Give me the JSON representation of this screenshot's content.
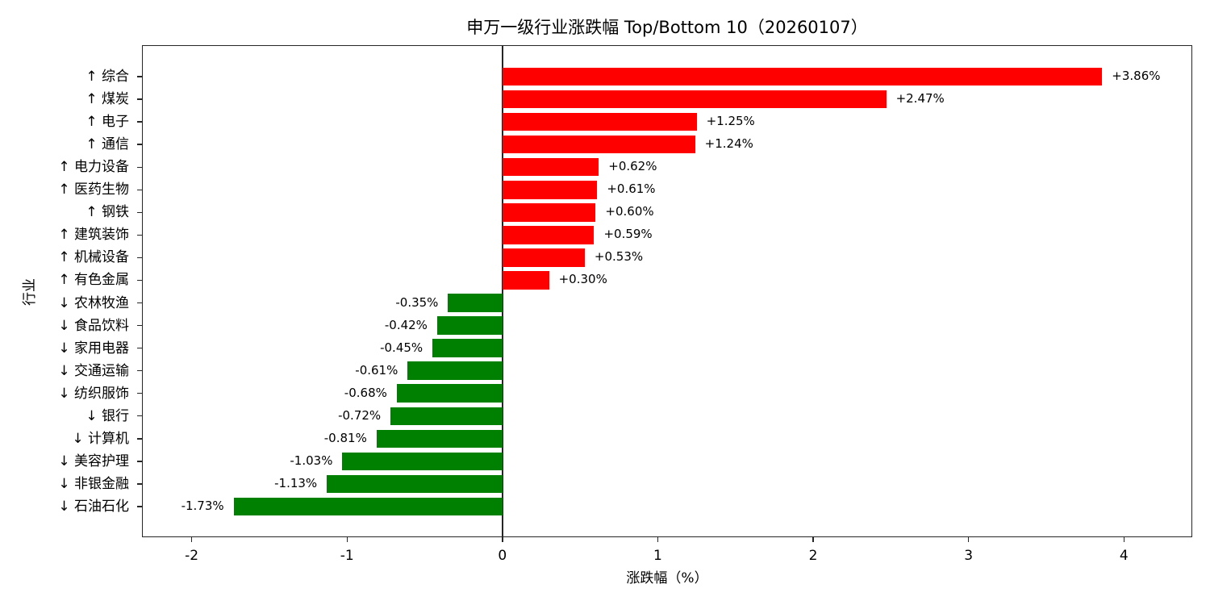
{
  "chart_data": {
    "type": "bar",
    "orientation": "horizontal",
    "title": "申万一级行业涨跌幅 Top/Bottom 10（20260107）",
    "xlabel": "涨跌幅（%）",
    "ylabel": "行业",
    "xlim": [
      -2.32,
      4.44
    ],
    "xticks": [
      -2,
      -1,
      0,
      1,
      2,
      3,
      4
    ],
    "xtick_labels": [
      "-2",
      "-1",
      "0",
      "1",
      "2",
      "3",
      "4"
    ],
    "grid": false,
    "legend": null,
    "colors": {
      "positive": "#ff0000",
      "negative": "#008000",
      "axis": "#262626"
    },
    "categories": [
      "↑ 综合",
      "↑ 煤炭",
      "↑ 电子",
      "↑ 通信",
      "↑ 电力设备",
      "↑ 医药生物",
      "↑ 钢铁",
      "↑ 建筑装饰",
      "↑ 机械设备",
      "↑ 有色金属",
      "↓ 农林牧渔",
      "↓ 食品饮料",
      "↓ 家用电器",
      "↓ 交通运输",
      "↓ 纺织服饰",
      "↓ 银行",
      "↓ 计算机",
      "↓ 美容护理",
      "↓ 非银金融",
      "↓ 石油石化"
    ],
    "values": [
      3.86,
      2.47,
      1.25,
      1.24,
      0.62,
      0.61,
      0.6,
      0.59,
      0.53,
      0.3,
      -0.35,
      -0.42,
      -0.45,
      -0.61,
      -0.68,
      -0.72,
      -0.81,
      -1.03,
      -1.13,
      -1.73
    ],
    "value_labels": [
      "+3.86%",
      "+2.47%",
      "+1.25%",
      "+1.24%",
      "+0.62%",
      "+0.61%",
      "+0.60%",
      "+0.59%",
      "+0.53%",
      "+0.30%",
      "-0.35%",
      "-0.42%",
      "-0.45%",
      "-0.61%",
      "-0.68%",
      "-0.72%",
      "-0.81%",
      "-1.03%",
      "-1.13%",
      "-1.73%"
    ]
  }
}
